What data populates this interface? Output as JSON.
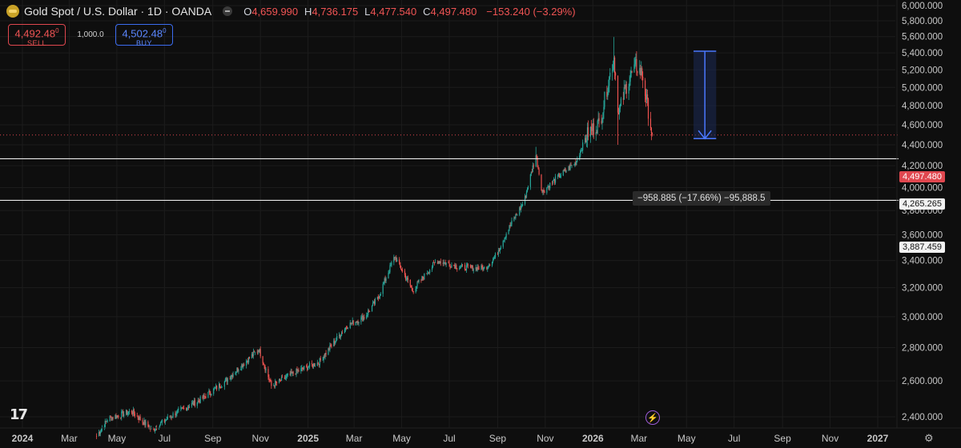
{
  "header": {
    "symbol_icon": "gold-coin-icon",
    "title": "Gold Spot / U.S. Dollar · 1D · OANDA",
    "open_key": "O",
    "open": "4,659.990",
    "high_key": "H",
    "high": "4,736.175",
    "low_key": "L",
    "low": "4,477.540",
    "close_key": "C",
    "close": "4,497.480",
    "change": "−153.240 (−3.29%)"
  },
  "trade": {
    "sell_price": "4,492.48",
    "sell_price_sup": "0",
    "sell_label": "SELL",
    "quantity": "1,000.0",
    "buy_price": "4,502.48",
    "buy_price_sup": "0",
    "buy_label": "BUY"
  },
  "measure_label": "−958.885 (−17.66%) −95,888.5",
  "price_labels": {
    "last": "4,497.480",
    "level1": "4,265.265",
    "level2": "3,887.459"
  },
  "icons": {
    "logo": "tradingview-logo-icon",
    "alert": "lightning-icon",
    "settings": "gear-icon"
  },
  "colors": {
    "up": "#26a69a",
    "down": "#ef5350",
    "last_price": "#e0474f",
    "measure": "#4a78ff"
  },
  "chart_data": {
    "type": "candlestick",
    "title": "Gold Spot / U.S. Dollar · 1D · OANDA",
    "ylim": [
      2300,
      6000
    ],
    "y_scale": "log",
    "y_ticks": [
      "6,000.000",
      "5,800.000",
      "5,600.000",
      "5,400.000",
      "5,200.000",
      "5,000.000",
      "4,800.000",
      "4,600.000",
      "4,400.000",
      "4,200.000",
      "4,000.000",
      "3,800.000",
      "3,600.000",
      "3,400.000",
      "3,200.000",
      "3,000.000",
      "2,800.000",
      "2,600.000",
      "2,400.000"
    ],
    "y_tick_values": [
      6000,
      5800,
      5600,
      5400,
      5200,
      5000,
      4800,
      4600,
      4400,
      4200,
      4000,
      3800,
      3600,
      3400,
      3200,
      3000,
      2800,
      2600,
      2400
    ],
    "x_ticks": [
      "2024",
      "Mar",
      "May",
      "Jul",
      "Sep",
      "Nov",
      "2025",
      "Mar",
      "May",
      "Jul",
      "Sep",
      "Nov",
      "2026",
      "Mar",
      "May",
      "Jul",
      "Sep",
      "Nov",
      "2027"
    ],
    "x_tick_dates": [
      "2024-01-01",
      "2024-03-01",
      "2024-05-01",
      "2024-07-01",
      "2024-09-01",
      "2024-11-01",
      "2025-01-01",
      "2025-03-01",
      "2025-05-01",
      "2025-07-01",
      "2025-09-01",
      "2025-11-01",
      "2026-01-01",
      "2026-03-01",
      "2026-05-01",
      "2026-07-01",
      "2026-09-01",
      "2026-11-01",
      "2027-01-01"
    ],
    "price_path": [
      [
        "2024-04-05",
        2300
      ],
      [
        "2024-04-20",
        2390
      ],
      [
        "2024-05-20",
        2430
      ],
      [
        "2024-06-15",
        2330
      ],
      [
        "2024-07-15",
        2420
      ],
      [
        "2024-08-15",
        2490
      ],
      [
        "2024-09-15",
        2590
      ],
      [
        "2024-10-30",
        2790
      ],
      [
        "2024-11-15",
        2570
      ],
      [
        "2024-12-15",
        2650
      ],
      [
        "2025-01-15",
        2710
      ],
      [
        "2025-02-20",
        2940
      ],
      [
        "2025-03-15",
        3000
      ],
      [
        "2025-04-01",
        3130
      ],
      [
        "2025-04-22",
        3430
      ],
      [
        "2025-05-15",
        3180
      ],
      [
        "2025-06-15",
        3400
      ],
      [
        "2025-07-15",
        3350
      ],
      [
        "2025-08-15",
        3340
      ],
      [
        "2025-08-28",
        3420
      ],
      [
        "2025-09-15",
        3650
      ],
      [
        "2025-10-05",
        3880
      ],
      [
        "2025-10-20",
        4300
      ],
      [
        "2025-10-28",
        3960
      ],
      [
        "2025-11-15",
        4080
      ],
      [
        "2025-12-10",
        4230
      ],
      [
        "2025-12-26",
        4520
      ],
      [
        "2026-01-10",
        4620
      ],
      [
        "2026-01-28",
        5350
      ],
      [
        "2026-02-03",
        4700
      ],
      [
        "2026-02-12",
        5000
      ],
      [
        "2026-02-25",
        5250
      ],
      [
        "2026-03-05",
        5150
      ],
      [
        "2026-03-10",
        4900
      ],
      [
        "2026-03-18",
        4497.48
      ]
    ],
    "horizontal_levels": [
      4265.265,
      3887.459
    ],
    "last_price": 4497.48,
    "measure": {
      "from_date": "2026-05-10",
      "to_date": "2026-06-08",
      "from_price": 5420,
      "to_price": 4461,
      "label": "−958.885 (−17.66%) −95,888.5"
    }
  }
}
